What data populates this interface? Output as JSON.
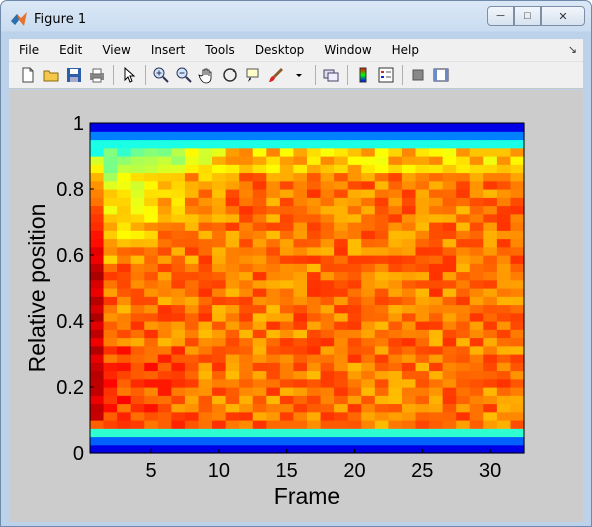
{
  "window": {
    "title": "Figure 1"
  },
  "menu": [
    "File",
    "Edit",
    "View",
    "Insert",
    "Tools",
    "Desktop",
    "Window",
    "Help"
  ],
  "toolbar": [
    "new-figure-icon",
    "open-file-icon",
    "save-icon",
    "print-icon",
    "pointer-icon",
    "zoom-in-icon",
    "zoom-out-icon",
    "pan-hand-icon",
    "rotate-3d-icon",
    "data-cursor-icon",
    "brush-icon",
    "link-plot-icon",
    "colorbar-icon",
    "legend-icon",
    "hide-plot-tools-icon",
    "show-plot-tools-icon"
  ],
  "chart_data": {
    "type": "heatmap",
    "xlabel": "Frame",
    "ylabel": "Relative position",
    "xlim": [
      0.5,
      32.5
    ],
    "ylim": [
      0,
      1
    ],
    "xticks": [
      5,
      10,
      15,
      20,
      25,
      30
    ],
    "yticks": [
      0,
      0.2,
      0.4,
      0.6,
      0.8,
      1
    ],
    "colormap": "jet",
    "n_frames": 32,
    "n_bins": 40,
    "grid": false
  }
}
